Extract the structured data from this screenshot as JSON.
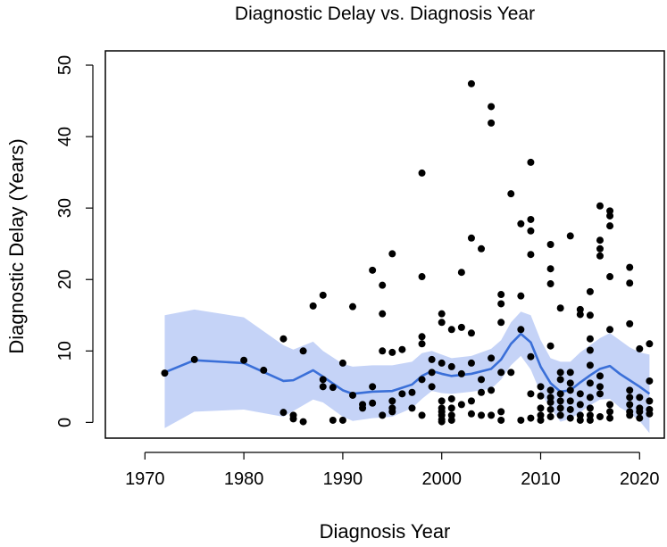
{
  "chart_data": {
    "type": "scatter",
    "title": "Diagnostic Delay vs. Diagnosis Year",
    "xlabel": "Diagnosis Year",
    "ylabel": "Diagnostic Delay (Years)",
    "xlim": [
      1966,
      2022.5
    ],
    "ylim": [
      -2.2,
      52
    ],
    "x_ticks": [
      1970,
      1980,
      1990,
      2000,
      2010,
      2020
    ],
    "y_ticks": [
      0,
      10,
      20,
      30,
      40,
      50
    ],
    "colors": {
      "points": "#000000",
      "smooth_line": "#3a6fd8",
      "band": "#c5d3f7"
    },
    "series": [
      {
        "name": "observations",
        "kind": "scatter",
        "points": [
          [
            1972,
            6.9
          ],
          [
            1975,
            8.8
          ],
          [
            1980,
            8.7
          ],
          [
            1982,
            7.3
          ],
          [
            1984,
            11.7
          ],
          [
            1984,
            1.4
          ],
          [
            1985,
            1.0
          ],
          [
            1985,
            0.5
          ],
          [
            1986,
            10.0
          ],
          [
            1986,
            0.1
          ],
          [
            1987,
            16.3
          ],
          [
            1988,
            17.8
          ],
          [
            1988,
            6.0
          ],
          [
            1988,
            5.0
          ],
          [
            1989,
            4.9
          ],
          [
            1989,
            0.3
          ],
          [
            1990,
            8.3
          ],
          [
            1990,
            0.3
          ],
          [
            1991,
            16.2
          ],
          [
            1991,
            3.8
          ],
          [
            1992,
            2.5
          ],
          [
            1992,
            2.0
          ],
          [
            1993,
            21.3
          ],
          [
            1993,
            5.0
          ],
          [
            1993,
            2.7
          ],
          [
            1994,
            19.2
          ],
          [
            1994,
            15.2
          ],
          [
            1994,
            10.0
          ],
          [
            1994,
            1.0
          ],
          [
            1995,
            23.6
          ],
          [
            1995,
            9.8
          ],
          [
            1995,
            3.0
          ],
          [
            1995,
            2.0
          ],
          [
            1995,
            1.5
          ],
          [
            1996,
            10.2
          ],
          [
            1996,
            4.0
          ],
          [
            1997,
            4.2
          ],
          [
            1997,
            2.0
          ],
          [
            1998,
            34.9
          ],
          [
            1998,
            20.4
          ],
          [
            1998,
            12.0
          ],
          [
            1998,
            11.0
          ],
          [
            1998,
            6.0
          ],
          [
            1998,
            1.0
          ],
          [
            1999,
            8.8
          ],
          [
            1999,
            7.0
          ],
          [
            1999,
            5.0
          ],
          [
            2000,
            15.2
          ],
          [
            2000,
            14.0
          ],
          [
            2000,
            8.3
          ],
          [
            2000,
            3.0
          ],
          [
            2000,
            2.0
          ],
          [
            2000,
            1.5
          ],
          [
            2000,
            1.0
          ],
          [
            2000,
            0.4
          ],
          [
            2000,
            0.1
          ],
          [
            2001,
            13.0
          ],
          [
            2001,
            7.8
          ],
          [
            2001,
            3.3
          ],
          [
            2001,
            2.0
          ],
          [
            2001,
            1.0
          ],
          [
            2001,
            0.3
          ],
          [
            2002,
            21.0
          ],
          [
            2002,
            13.3
          ],
          [
            2002,
            6.8
          ],
          [
            2002,
            2.5
          ],
          [
            2003,
            47.4
          ],
          [
            2003,
            25.8
          ],
          [
            2003,
            12.5
          ],
          [
            2003,
            8.3
          ],
          [
            2003,
            3.0
          ],
          [
            2003,
            1.2
          ],
          [
            2004,
            24.3
          ],
          [
            2004,
            6.0
          ],
          [
            2004,
            4.2
          ],
          [
            2004,
            1.0
          ],
          [
            2005,
            44.2
          ],
          [
            2005,
            41.9
          ],
          [
            2005,
            9.0
          ],
          [
            2005,
            4.5
          ],
          [
            2005,
            1.0
          ],
          [
            2006,
            17.9
          ],
          [
            2006,
            16.6
          ],
          [
            2006,
            14.0
          ],
          [
            2006,
            7.0
          ],
          [
            2006,
            1.5
          ],
          [
            2006,
            0.3
          ],
          [
            2007,
            32.0
          ],
          [
            2007,
            7.0
          ],
          [
            2008,
            27.8
          ],
          [
            2008,
            17.7
          ],
          [
            2008,
            13.0
          ],
          [
            2008,
            0.3
          ],
          [
            2009,
            36.4
          ],
          [
            2009,
            28.4
          ],
          [
            2009,
            26.8
          ],
          [
            2009,
            23.5
          ],
          [
            2009,
            9.2
          ],
          [
            2009,
            4.0
          ],
          [
            2009,
            0.6
          ],
          [
            2010,
            5.0
          ],
          [
            2010,
            3.7
          ],
          [
            2010,
            2.0
          ],
          [
            2010,
            1.0
          ],
          [
            2010,
            0.3
          ],
          [
            2011,
            24.9
          ],
          [
            2011,
            21.5
          ],
          [
            2011,
            19.4
          ],
          [
            2011,
            10.7
          ],
          [
            2011,
            4.5
          ],
          [
            2011,
            3.5
          ],
          [
            2011,
            2.8
          ],
          [
            2011,
            1.8
          ],
          [
            2011,
            0.8
          ],
          [
            2012,
            16.0
          ],
          [
            2012,
            7.0
          ],
          [
            2012,
            6.0
          ],
          [
            2012,
            4.0
          ],
          [
            2012,
            3.0
          ],
          [
            2012,
            2.0
          ],
          [
            2012,
            1.0
          ],
          [
            2013,
            26.1
          ],
          [
            2013,
            7.0
          ],
          [
            2013,
            5.5
          ],
          [
            2013,
            4.5
          ],
          [
            2013,
            3.0
          ],
          [
            2013,
            1.8
          ],
          [
            2013,
            0.6
          ],
          [
            2014,
            15.8
          ],
          [
            2014,
            15.1
          ],
          [
            2014,
            4.0
          ],
          [
            2014,
            2.5
          ],
          [
            2014,
            1.0
          ],
          [
            2014,
            0.3
          ],
          [
            2015,
            18.3
          ],
          [
            2015,
            15.0
          ],
          [
            2015,
            11.7
          ],
          [
            2015,
            10.1
          ],
          [
            2015,
            8.0
          ],
          [
            2015,
            5.5
          ],
          [
            2015,
            3.5
          ],
          [
            2015,
            2.0
          ],
          [
            2015,
            1.0
          ],
          [
            2015,
            0.3
          ],
          [
            2016,
            30.3
          ],
          [
            2016,
            25.5
          ],
          [
            2016,
            24.3
          ],
          [
            2016,
            23.3
          ],
          [
            2016,
            6.5
          ],
          [
            2016,
            5.0
          ],
          [
            2016,
            4.0
          ],
          [
            2016,
            0.8
          ],
          [
            2017,
            29.6
          ],
          [
            2017,
            28.9
          ],
          [
            2017,
            27.5
          ],
          [
            2017,
            20.4
          ],
          [
            2017,
            13.0
          ],
          [
            2017,
            2.5
          ],
          [
            2017,
            1.5
          ],
          [
            2017,
            0.6
          ],
          [
            2019,
            21.7
          ],
          [
            2019,
            19.5
          ],
          [
            2019,
            13.8
          ],
          [
            2019,
            4.5
          ],
          [
            2019,
            3.5
          ],
          [
            2019,
            2.5
          ],
          [
            2019,
            1.5
          ],
          [
            2019,
            1.0
          ],
          [
            2020,
            10.3
          ],
          [
            2020,
            3.5
          ],
          [
            2020,
            2.0
          ],
          [
            2020,
            1.5
          ],
          [
            2020,
            0.6
          ],
          [
            2021,
            11.0
          ],
          [
            2021,
            5.8
          ],
          [
            2021,
            3.0
          ],
          [
            2021,
            1.8
          ],
          [
            2021,
            1.2
          ]
        ]
      },
      {
        "name": "smoothed trend",
        "kind": "line",
        "points": [
          [
            1972,
            7.0
          ],
          [
            1975,
            8.7
          ],
          [
            1980,
            8.3
          ],
          [
            1984,
            5.8
          ],
          [
            1985,
            5.9
          ],
          [
            1987,
            7.3
          ],
          [
            1988,
            6.4
          ],
          [
            1990,
            4.5
          ],
          [
            1991,
            4.0
          ],
          [
            1993,
            4.3
          ],
          [
            1995,
            4.4
          ],
          [
            1997,
            5.3
          ],
          [
            1998,
            6.5
          ],
          [
            1999,
            7.2
          ],
          [
            2000,
            6.8
          ],
          [
            2001,
            6.5
          ],
          [
            2003,
            6.8
          ],
          [
            2005,
            7.5
          ],
          [
            2006,
            8.8
          ],
          [
            2007,
            11.0
          ],
          [
            2008,
            12.4
          ],
          [
            2009,
            11.2
          ],
          [
            2010,
            7.8
          ],
          [
            2011,
            5.5
          ],
          [
            2012,
            4.3
          ],
          [
            2013,
            4.5
          ],
          [
            2014,
            5.6
          ],
          [
            2015,
            6.6
          ],
          [
            2016,
            7.5
          ],
          [
            2017,
            7.9
          ],
          [
            2018,
            6.8
          ],
          [
            2019,
            5.9
          ],
          [
            2020,
            5.0
          ],
          [
            2021,
            4.0
          ]
        ]
      },
      {
        "name": "confidence band",
        "kind": "band",
        "upper": [
          [
            1972,
            15.0
          ],
          [
            1975,
            15.8
          ],
          [
            1980,
            14.7
          ],
          [
            1984,
            10.8
          ],
          [
            1985,
            10.2
          ],
          [
            1987,
            11.3
          ],
          [
            1988,
            10.0
          ],
          [
            1990,
            8.2
          ],
          [
            1991,
            7.8
          ],
          [
            1993,
            8.0
          ],
          [
            1995,
            8.0
          ],
          [
            1997,
            8.5
          ],
          [
            1998,
            9.7
          ],
          [
            1999,
            10.0
          ],
          [
            2000,
            9.5
          ],
          [
            2001,
            9.0
          ],
          [
            2003,
            9.3
          ],
          [
            2005,
            10.3
          ],
          [
            2006,
            11.5
          ],
          [
            2007,
            14.0
          ],
          [
            2008,
            15.5
          ],
          [
            2009,
            15.0
          ],
          [
            2010,
            11.5
          ],
          [
            2011,
            9.0
          ],
          [
            2012,
            8.5
          ],
          [
            2013,
            8.5
          ],
          [
            2014,
            9.8
          ],
          [
            2015,
            10.8
          ],
          [
            2016,
            11.8
          ],
          [
            2017,
            12.5
          ],
          [
            2018,
            11.5
          ],
          [
            2019,
            10.5
          ],
          [
            2020,
            9.8
          ],
          [
            2021,
            9.5
          ]
        ],
        "lower": [
          [
            1972,
            -0.8
          ],
          [
            1975,
            1.5
          ],
          [
            1980,
            1.8
          ],
          [
            1984,
            0.8
          ],
          [
            1985,
            1.6
          ],
          [
            1987,
            3.2
          ],
          [
            1988,
            2.8
          ],
          [
            1990,
            0.8
          ],
          [
            1991,
            0.2
          ],
          [
            1993,
            0.6
          ],
          [
            1995,
            0.8
          ],
          [
            1997,
            2.0
          ],
          [
            1998,
            3.3
          ],
          [
            1999,
            4.4
          ],
          [
            2000,
            4.1
          ],
          [
            2001,
            4.0
          ],
          [
            2003,
            4.3
          ],
          [
            2005,
            4.7
          ],
          [
            2006,
            6.0
          ],
          [
            2007,
            8.0
          ],
          [
            2008,
            9.3
          ],
          [
            2009,
            7.4
          ],
          [
            2010,
            4.1
          ],
          [
            2011,
            2.0
          ],
          [
            2012,
            0.1
          ],
          [
            2013,
            0.5
          ],
          [
            2014,
            1.4
          ],
          [
            2015,
            2.4
          ],
          [
            2016,
            3.2
          ],
          [
            2017,
            3.3
          ],
          [
            2018,
            2.1
          ],
          [
            2019,
            1.3
          ],
          [
            2020,
            0.2
          ],
          [
            2021,
            -1.5
          ]
        ]
      }
    ]
  }
}
